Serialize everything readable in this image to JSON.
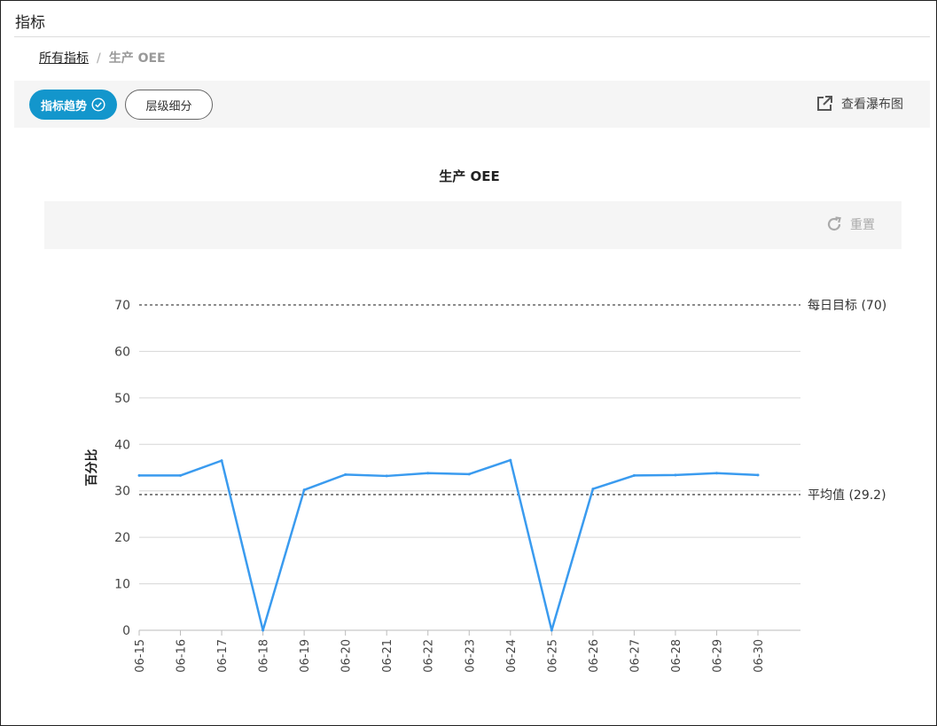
{
  "page": {
    "title": "指标"
  },
  "breadcrumb": {
    "root": "所有指标",
    "separator": "/",
    "current": "生产 OEE"
  },
  "toolbar": {
    "tab_trend": "指标趋势",
    "tab_breakdown": "层级细分",
    "waterfall_link": "查看瀑布图"
  },
  "chart_toolbar": {
    "reset_label": "重置"
  },
  "colors": {
    "accent": "#1396cc",
    "series": "#3a9bef"
  },
  "chart_data": {
    "type": "line",
    "title": "生产 OEE",
    "ylabel": "百分比",
    "xlabel": "",
    "ylim": [
      0,
      70
    ],
    "yticks": [
      0,
      10,
      20,
      30,
      40,
      50,
      60,
      70
    ],
    "categories": [
      "06-15",
      "06-16",
      "06-17",
      "06-18",
      "06-19",
      "06-20",
      "06-21",
      "06-22",
      "06-23",
      "06-24",
      "06-25",
      "06-26",
      "06-27",
      "06-28",
      "06-29",
      "06-30"
    ],
    "series": [
      {
        "values": [
          33.3,
          33.3,
          36.5,
          0,
          30.2,
          33.5,
          33.2,
          33.8,
          33.6,
          36.6,
          0,
          30.4,
          33.3,
          33.4,
          33.8,
          33.4
        ]
      }
    ],
    "reference_lines": [
      {
        "value": 70,
        "label": "每日目标 (70)"
      },
      {
        "value": 29.2,
        "label": "平均值 (29.2)"
      }
    ],
    "grid": true
  }
}
